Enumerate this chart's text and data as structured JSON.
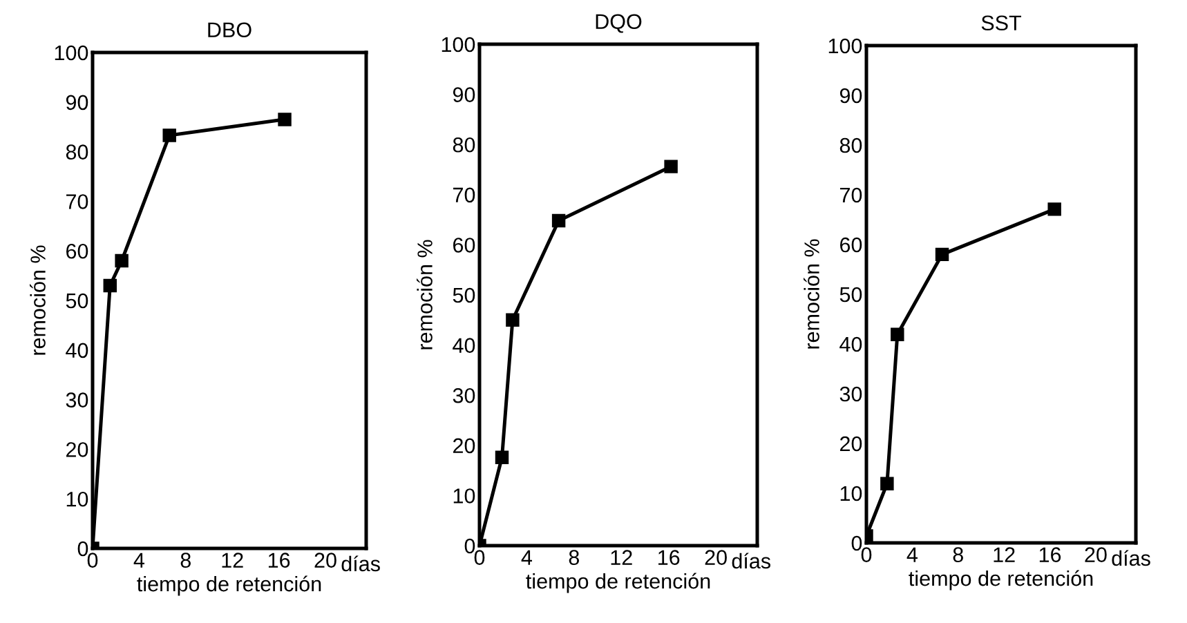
{
  "chart_data": [
    {
      "type": "line",
      "title": "DBO",
      "xlabel": "tiempo de retención",
      "ylabel": "remoción %",
      "annotations": [
        "días"
      ],
      "xlim": [
        0,
        23.5
      ],
      "xticks": [
        0,
        4,
        8,
        12,
        16,
        20
      ],
      "ylim": [
        0,
        100
      ],
      "yticks": [
        0,
        10,
        20,
        30,
        40,
        50,
        60,
        70,
        80,
        90,
        100
      ],
      "grid": false,
      "legend": false,
      "marker": "square",
      "line_style": "solid",
      "series": [
        {
          "color": "#000000",
          "x": [
            0,
            1.5,
            2.5,
            6.6,
            16.5
          ],
          "values": [
            0,
            53,
            58,
            83.3,
            86.5
          ]
        }
      ]
    },
    {
      "type": "line",
      "title": "DQO",
      "xlabel": "tiempo de retención",
      "ylabel": "remoción %",
      "annotations": [
        "días"
      ],
      "xlim": [
        0,
        23.5
      ],
      "xticks": [
        0,
        4,
        8,
        12,
        16,
        20
      ],
      "ylim": [
        0,
        100
      ],
      "yticks": [
        0,
        10,
        20,
        30,
        40,
        50,
        60,
        70,
        80,
        90,
        100
      ],
      "grid": false,
      "legend": false,
      "marker": "square",
      "line_style": "solid",
      "series": [
        {
          "color": "#000000",
          "x": [
            0,
            1.9,
            2.8,
            6.7,
            16.2
          ],
          "values": [
            0,
            17.6,
            45,
            64.8,
            75.6
          ]
        }
      ]
    },
    {
      "type": "line",
      "title": "SST",
      "xlabel": "tiempo de retención",
      "ylabel": "remoción %",
      "annotations": [
        "días"
      ],
      "xlim": [
        0,
        23.5
      ],
      "xticks": [
        0,
        4,
        8,
        12,
        16,
        20
      ],
      "ylim": [
        0,
        100
      ],
      "yticks": [
        0,
        10,
        20,
        30,
        40,
        50,
        60,
        70,
        80,
        90,
        100
      ],
      "grid": false,
      "legend": false,
      "marker": "square",
      "line_style": "solid",
      "series": [
        {
          "color": "#000000",
          "x": [
            0,
            1.8,
            2.7,
            6.6,
            16.4
          ],
          "values": [
            1.4,
            11.9,
            41.9,
            58,
            67.1
          ]
        }
      ]
    }
  ]
}
